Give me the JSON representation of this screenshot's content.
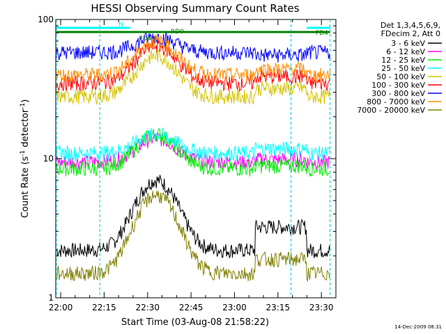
{
  "chart_data": {
    "type": "line",
    "title": "HESSI Observing Summary Count Rates",
    "xlabel": "Start Time (03-Aug-08 21:58:22)",
    "ylabel_main": "Count Rate (s",
    "ylabel_sup1": "-1",
    "ylabel_mid": " detector",
    "ylabel_sup2": "-1",
    "ylabel_end": ")",
    "y_scale": "log",
    "ylim": [
      1,
      100
    ],
    "xlim_minutes": [
      -1.7,
      35.5
    ],
    "x_ticks": [
      {
        "minute": 0,
        "label": "22:00"
      },
      {
        "minute": 15,
        "label": "22:15"
      },
      {
        "minute": 30,
        "label": "22:30"
      },
      {
        "minute": 45,
        "label": "22:45"
      },
      {
        "minute": 60,
        "label": "23:00"
      },
      {
        "minute": 75,
        "label": "23:15"
      },
      {
        "minute": 90,
        "label": "23:30"
      }
    ],
    "y_ticks": [
      {
        "value": 1,
        "label": "1"
      },
      {
        "value": 10,
        "label": "10"
      },
      {
        "value": 100,
        "label": "100"
      }
    ],
    "legend_header": [
      "Det 1,3,4,5,6,9,",
      "FDecim 2, Att 0"
    ],
    "legend_placement": "right",
    "series": [
      {
        "name": "3 - 6 keV",
        "color": "#000000",
        "baseline": 2.2,
        "peak": 7.0,
        "late": 3.5
      },
      {
        "name": "6 - 12 keV",
        "color": "#ff00ff",
        "baseline": 9.5,
        "peak": 14,
        "late": 10
      },
      {
        "name": "12 - 25 keV",
        "color": "#00ee00",
        "baseline": 8.5,
        "peak": 15,
        "late": 9
      },
      {
        "name": "25 - 50 keV",
        "color": "#00ffff",
        "baseline": 11,
        "peak": 15,
        "late": 12
      },
      {
        "name": "50 - 100 keV",
        "color": "#d4c400",
        "baseline": 28,
        "peak": 55,
        "late": 33
      },
      {
        "name": "100 - 300 keV",
        "color": "#ff0000",
        "baseline": 35,
        "peak": 65,
        "late": 40
      },
      {
        "name": "300 - 800 keV",
        "color": "#0000ff",
        "baseline": 58,
        "peak": 75,
        "late": 55
      },
      {
        "name": "800 - 7000 keV",
        "color": "#ff8c00",
        "baseline": 40,
        "peak": 70,
        "late": 45
      },
      {
        "name": "7000 - 20000 keV",
        "color": "#808000",
        "baseline": 1.5,
        "peak": 5.5,
        "late": 2.0
      }
    ],
    "annotations": [
      {
        "text": "N",
        "color": "#00ffff"
      },
      {
        "text": "RD0",
        "color": "#008000"
      },
      {
        "text": "FD4",
        "color": "#008000"
      },
      {
        "text": "FD4",
        "color": "#008000"
      }
    ],
    "flags": {
      "night_color": "#00ffff",
      "saa_color": "#00cccc",
      "rd_color": "#008000"
    }
  },
  "footer": {
    "timestamp": "14-Dec-2009 08:31"
  }
}
